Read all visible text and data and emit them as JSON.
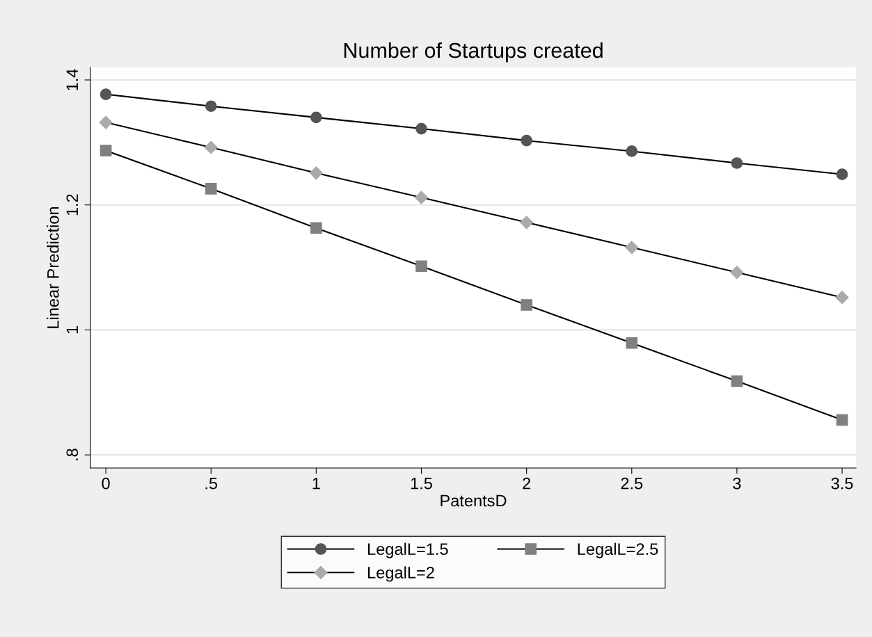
{
  "chart_data": {
    "type": "line",
    "title": "Number of Startups created",
    "xlabel": "PatentsD",
    "ylabel": "Linear Prediction",
    "x": [
      0,
      0.5,
      1,
      1.5,
      2,
      2.5,
      3,
      3.5
    ],
    "series": [
      {
        "name": "LegalL=1.5",
        "color": "#555555",
        "marker": "circle",
        "values": [
          1.377,
          1.358,
          1.34,
          1.322,
          1.303,
          1.286,
          1.267,
          1.249
        ]
      },
      {
        "name": "LegalL=2",
        "color": "#aaaaaa",
        "marker": "diamond",
        "values": [
          1.332,
          1.292,
          1.251,
          1.212,
          1.172,
          1.132,
          1.092,
          1.052
        ]
      },
      {
        "name": "LegalL=2.5",
        "color": "#808080",
        "marker": "square",
        "values": [
          1.287,
          1.226,
          1.163,
          1.102,
          1.04,
          0.979,
          0.918,
          0.856
        ]
      }
    ],
    "xlim": [
      -0.073,
      3.566
    ],
    "ylim": [
      0.779,
      1.42
    ],
    "xticks": [
      0,
      {
        "value": 0.5,
        "label": ".5"
      },
      1,
      1.5,
      2,
      2.5,
      3,
      3.5
    ],
    "yticks": [
      {
        "value": 0.8,
        "label": ".8"
      },
      1,
      1.2,
      1.4
    ],
    "grid": "y",
    "legend": "bottom",
    "line_style": "solid"
  }
}
